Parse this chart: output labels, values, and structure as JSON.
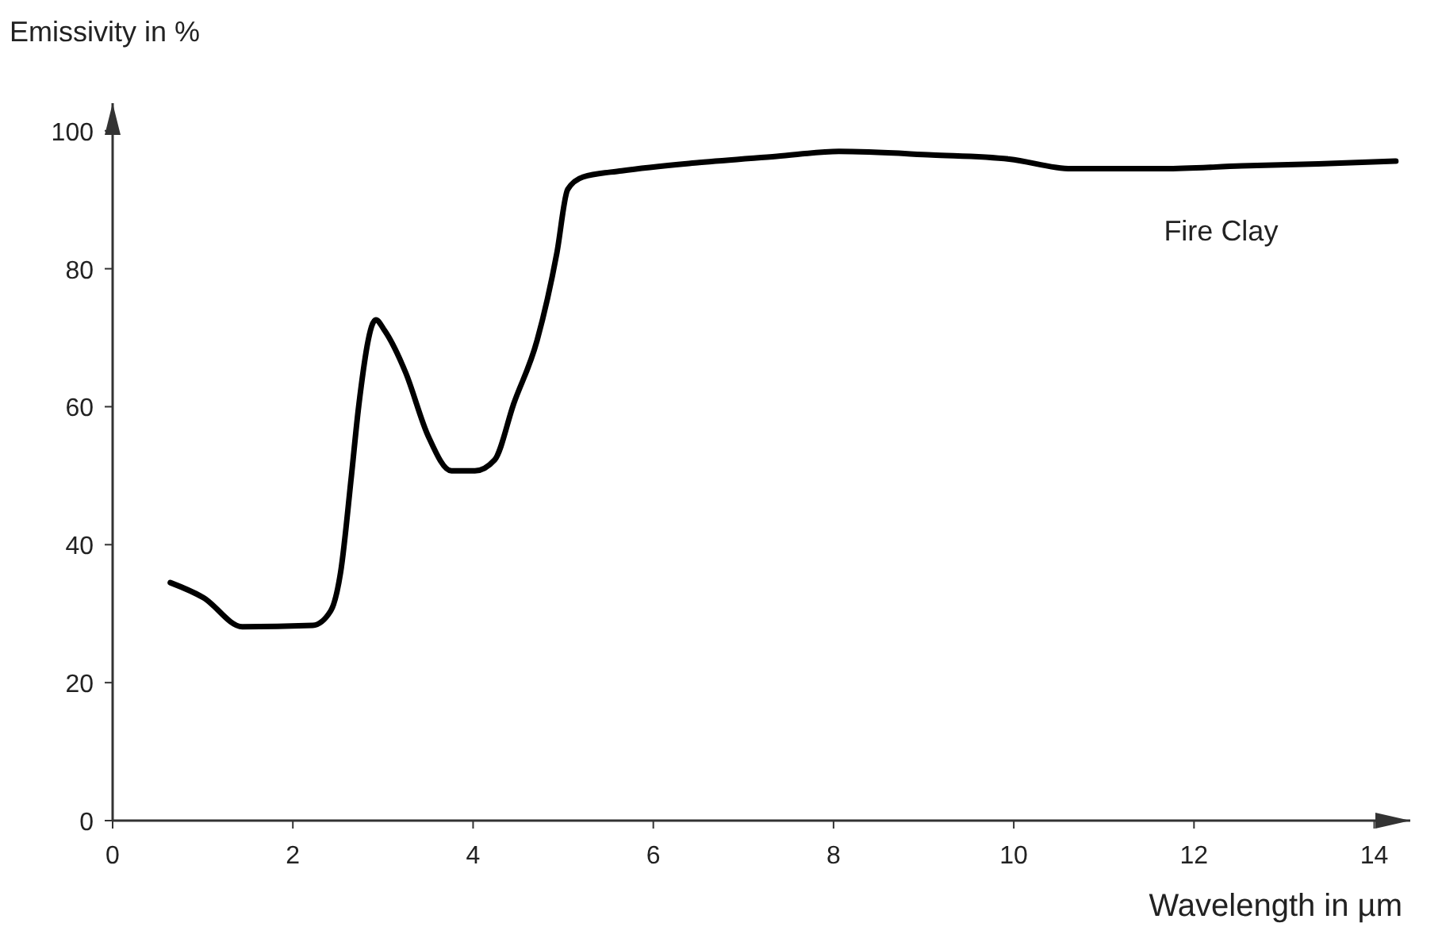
{
  "chart_data": {
    "type": "line",
    "xlabel": "Wavelength in µm",
    "ylabel": "Emissivity in %",
    "xlim": [
      0,
      14.4
    ],
    "ylim": [
      0,
      104
    ],
    "xticks": [
      0,
      2,
      4,
      6,
      8,
      10,
      12,
      14
    ],
    "yticks": [
      0,
      20,
      40,
      60,
      80,
      100
    ],
    "grid": false,
    "legend": false,
    "marker": "none",
    "line_style": "solid",
    "series": [
      {
        "name": "Fire Clay",
        "color": "#000000",
        "x": [
          0.64,
          1.01,
          1.44,
          2.22,
          2.42,
          2.53,
          2.65,
          2.73,
          2.92,
          3.02,
          3.25,
          3.5,
          3.76,
          4.02,
          4.24,
          4.45,
          4.71,
          4.93,
          5.05,
          5.22,
          5.65,
          6.51,
          7.37,
          8.06,
          9.09,
          9.95,
          10.64,
          11.67,
          12.53,
          13.38,
          14.24
        ],
        "values": [
          34.5,
          32.3,
          28.1,
          28.3,
          30.4,
          36,
          50,
          60,
          72.6,
          71,
          65,
          55.8,
          50.7,
          50.7,
          52.3,
          60.4,
          69.6,
          82.3,
          91.5,
          93.3,
          94.2,
          95.4,
          96.3,
          97,
          96.5,
          95.9,
          94.5,
          94.5,
          94.9,
          95.2,
          95.6
        ]
      }
    ]
  }
}
